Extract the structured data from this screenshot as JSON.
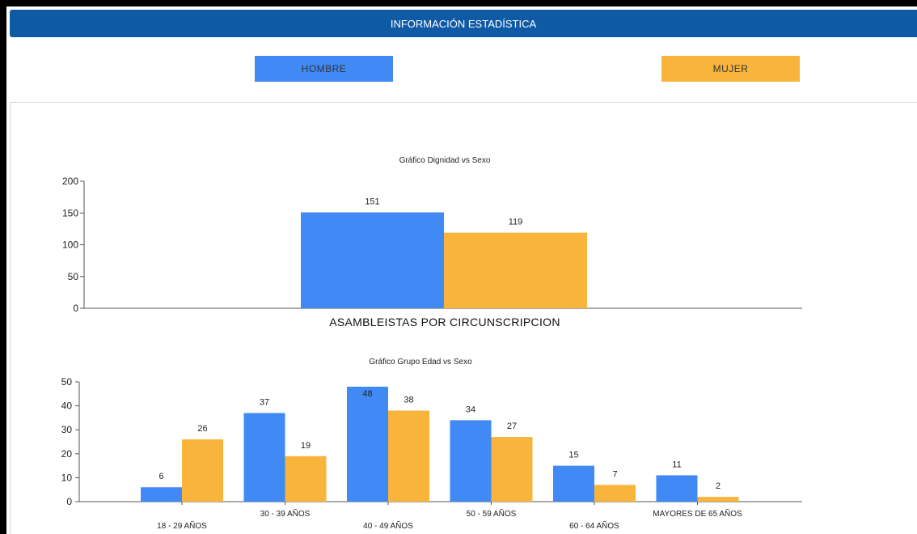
{
  "header": {
    "title": "INFORMACIÓN ESTADÍSTICA"
  },
  "legend": {
    "hombre": "HOMBRE",
    "mujer": "MUJER"
  },
  "colors": {
    "hombre": "#4189f4",
    "mujer": "#f9b43b",
    "header": "#0f5aa5"
  },
  "section_label": "ASAMBLEISTAS POR CIRCUNSCRIPCION",
  "chart_data": [
    {
      "type": "bar",
      "title": "Gráfico Dignidad vs Sexo",
      "categories": [
        ""
      ],
      "series": [
        {
          "name": "HOMBRE",
          "values": [
            151
          ]
        },
        {
          "name": "MUJER",
          "values": [
            119
          ]
        }
      ],
      "ylim": [
        0,
        200
      ],
      "yticks": [
        0,
        50,
        100,
        150,
        200
      ],
      "xlabel": "ASAMBLEISTAS POR CIRCUNSCRIPCION",
      "ylabel": ""
    },
    {
      "type": "bar",
      "title": "Gráfico Grupo Edad vs Sexo",
      "categories": [
        "18 - 29 AÑOS",
        "30 - 39 AÑOS",
        "40 - 49 AÑOS",
        "50 - 59 AÑOS",
        "60 - 64 AÑOS",
        "MAYORES DE 65 AÑOS"
      ],
      "series": [
        {
          "name": "HOMBRE",
          "values": [
            6,
            37,
            48,
            34,
            15,
            11
          ]
        },
        {
          "name": "MUJER",
          "values": [
            26,
            19,
            38,
            27,
            7,
            2
          ]
        }
      ],
      "ylim": [
        0,
        50
      ],
      "yticks": [
        0,
        10,
        20,
        30,
        40,
        50
      ],
      "xlabel": "",
      "ylabel": ""
    }
  ]
}
